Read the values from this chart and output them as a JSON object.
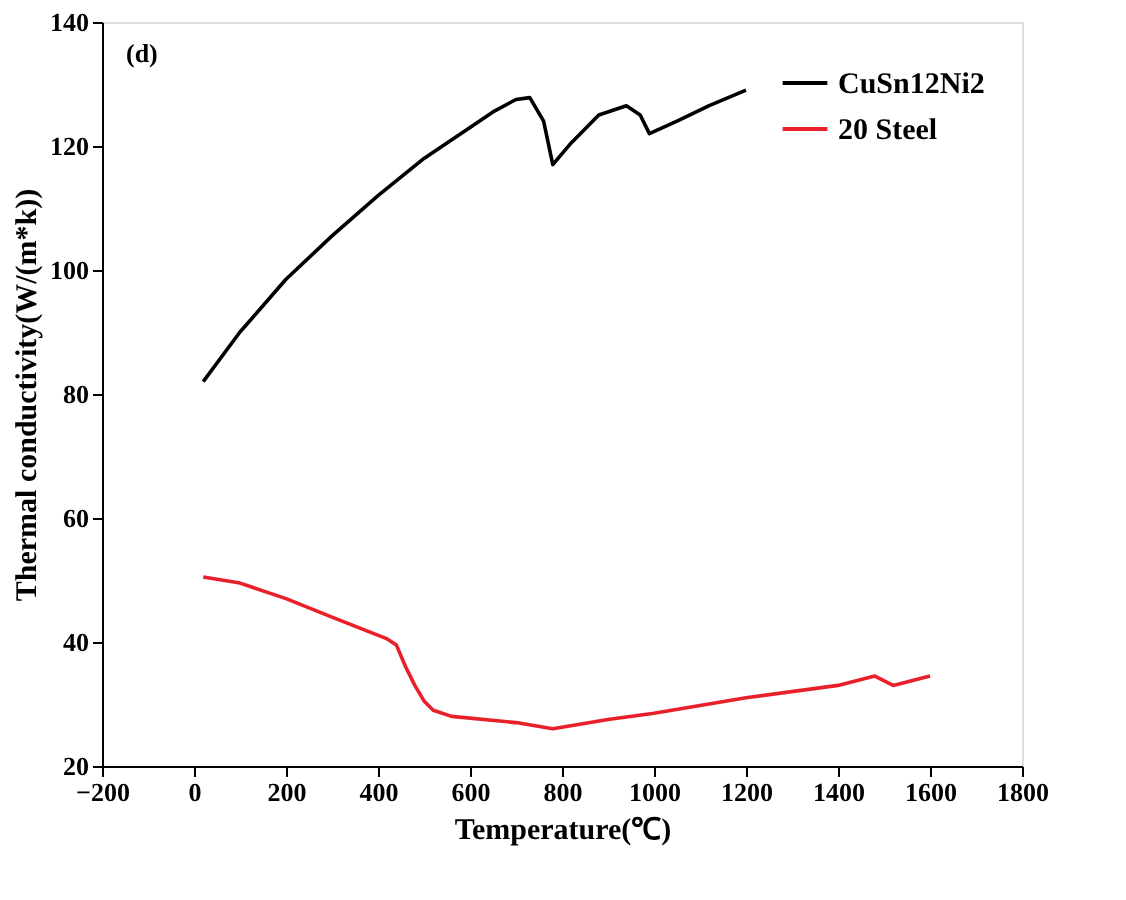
{
  "chart_data": {
    "type": "line",
    "xlabel": "Temperature(℃)",
    "ylabel": "Thermal conductivity(W/(m*k))",
    "annotations": [
      "(d)"
    ],
    "xlim": [
      -200,
      1800
    ],
    "xticks": [
      -200,
      0,
      200,
      400,
      600,
      800,
      1000,
      1200,
      1400,
      1600,
      1800
    ],
    "ylim": [
      20,
      140
    ],
    "yticks": [
      20,
      40,
      60,
      80,
      100,
      120,
      140
    ],
    "grid": false,
    "legend": "top right",
    "marker": "none",
    "line_style": "solid",
    "series": [
      {
        "name": "CuSn12Ni2",
        "color": "#000000",
        "x": [
          20,
          100,
          200,
          300,
          400,
          500,
          600,
          650,
          700,
          730,
          760,
          780,
          820,
          880,
          940,
          970,
          990,
          1050,
          1120,
          1200
        ],
        "values": [
          82,
          90,
          98.5,
          105.5,
          112,
          118,
          123,
          125.5,
          127.5,
          127.8,
          124,
          117,
          120.5,
          125,
          126.5,
          125,
          122,
          124,
          126.5,
          129
        ]
      },
      {
        "name": "20 Steel",
        "color": "#e8202a",
        "x": [
          20,
          100,
          200,
          300,
          420,
          440,
          460,
          480,
          500,
          520,
          560,
          700,
          780,
          900,
          1000,
          1200,
          1400,
          1480,
          1520,
          1600
        ],
        "values": [
          50.5,
          49.5,
          47,
          44,
          40.5,
          39.5,
          36,
          33,
          30.5,
          29,
          28,
          27,
          26,
          27.5,
          28.5,
          31,
          33,
          34.5,
          33,
          34.5
        ]
      }
    ]
  }
}
